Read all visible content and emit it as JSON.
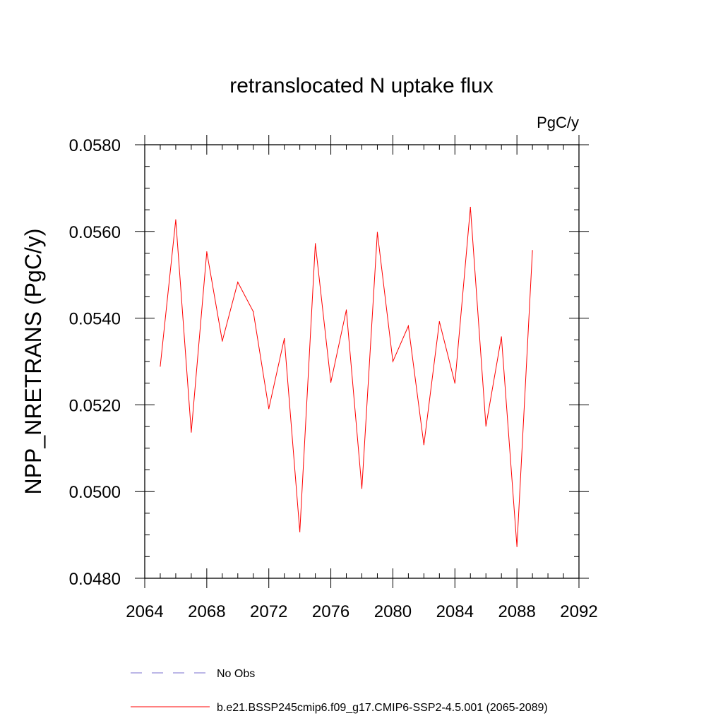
{
  "chart_data": {
    "type": "line",
    "title": "retranslocated N uptake flux",
    "units": "PgC/y",
    "ylabel": "NPP_NRETRANS  (PgC/y)",
    "xlabel": "",
    "xlim": [
      2064,
      2092
    ],
    "ylim": [
      0.048,
      0.058
    ],
    "xticks": [
      2064,
      2068,
      2072,
      2076,
      2080,
      2084,
      2088,
      2092
    ],
    "xtick_labels": [
      "2064",
      "2068",
      "2072",
      "2076",
      "2080",
      "2084",
      "2088",
      "2092"
    ],
    "yticks": [
      0.048,
      0.05,
      0.052,
      0.054,
      0.056,
      0.058
    ],
    "ytick_labels": [
      "0.0480",
      "0.0500",
      "0.0520",
      "0.0540",
      "0.0560",
      "0.0580"
    ],
    "grid": false,
    "series": [
      {
        "name": "b.e21.BSSP245cmip6.f09_g17.CMIP6-SSP2-4.5.001 (2065-2089)",
        "color": "#ff0000",
        "x": [
          2065,
          2066,
          2067,
          2068,
          2069,
          2070,
          2071,
          2072,
          2073,
          2074,
          2075,
          2076,
          2077,
          2078,
          2079,
          2080,
          2081,
          2082,
          2083,
          2084,
          2085,
          2086,
          2087,
          2088,
          2089
        ],
        "y": [
          0.05289,
          0.05627,
          0.05137,
          0.05553,
          0.05347,
          0.05483,
          0.05415,
          0.05191,
          0.05353,
          0.04907,
          0.05572,
          0.05252,
          0.05419,
          0.05007,
          0.05598,
          0.053,
          0.05382,
          0.05108,
          0.05392,
          0.0525,
          0.05656,
          0.05151,
          0.05357,
          0.04873,
          0.05556
        ]
      }
    ],
    "legend": {
      "placement": "bottom",
      "entries": [
        {
          "label": "No Obs",
          "color": "#7a6fcf",
          "style": "dashed"
        },
        {
          "label": "b.e21.BSSP245cmip6.f09_g17.CMIP6-SSP2-4.5.001 (2065-2089)",
          "color": "#ff0000",
          "style": "solid"
        }
      ]
    }
  }
}
